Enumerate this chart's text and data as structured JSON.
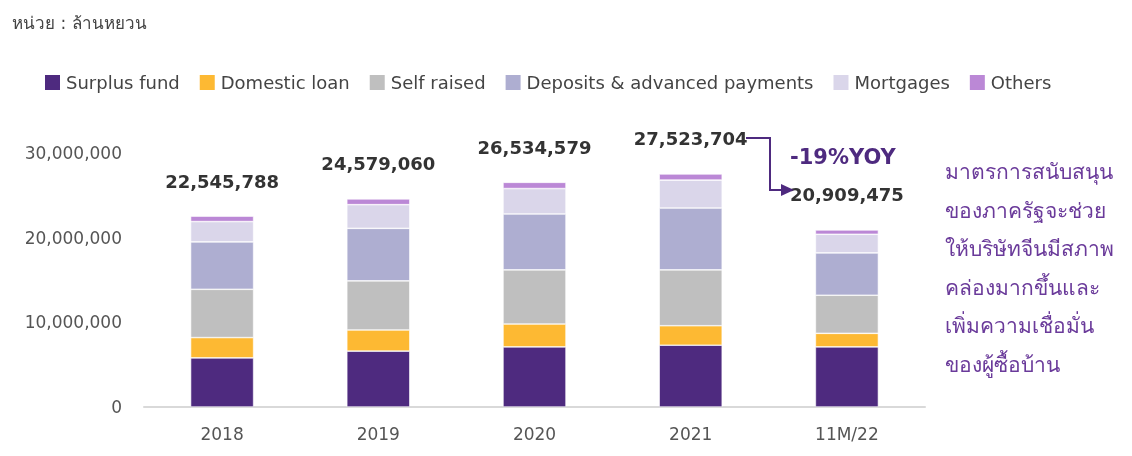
{
  "chart_data": {
    "type": "bar",
    "stacked": true,
    "subtitle": "หน่วย : ล้านหยวน",
    "categories": [
      "2018",
      "2019",
      "2020",
      "2021",
      "11M/22"
    ],
    "series": [
      {
        "name": "Surplus fund",
        "color": "#4e2a7f",
        "values": [
          5800000,
          6600000,
          7100000,
          7300000,
          7100000
        ]
      },
      {
        "name": "Domestic loan",
        "color": "#fdb933",
        "values": [
          2400000,
          2500000,
          2700000,
          2300000,
          1600000
        ]
      },
      {
        "name": "Self raised",
        "color": "#bfbfbf",
        "values": [
          5700000,
          5800000,
          6400000,
          6600000,
          4500000
        ]
      },
      {
        "name": "Deposits & advanced payments",
        "color": "#aeaed1",
        "values": [
          5600000,
          6200000,
          6600000,
          7300000,
          5000000
        ]
      },
      {
        "name": "Mortgages",
        "color": "#dad6ea",
        "values": [
          2400000,
          2800000,
          3000000,
          3300000,
          2200000
        ]
      },
      {
        "name": "Others",
        "color": "#bb88d6",
        "values": [
          645788,
          679060,
          734579,
          723704,
          509475
        ]
      }
    ],
    "totals": [
      "22,545,788",
      "24,579,060",
      "26,534,579",
      "27,523,704",
      "20,909,475"
    ],
    "ylim": [
      0,
      30000000
    ],
    "yticks": [
      0,
      {
        "value": 10000000,
        "label": "10,000,000"
      },
      {
        "value": 20000000,
        "label": "20,000,000"
      },
      {
        "value": 30000000,
        "label": "30,000,000"
      }
    ],
    "grid": false,
    "legend": "top left",
    "annotations": [
      "-19%YOY",
      "มาตรการสนับสนุน\nของภาครัฐจะช่วย\nให้บริษัทจีนมีสภาพ\nคล่องมากขึ้นและ\nเพิ่มความเชื่อมั่น\nของผู้ซื้อบ้าน"
    ]
  }
}
